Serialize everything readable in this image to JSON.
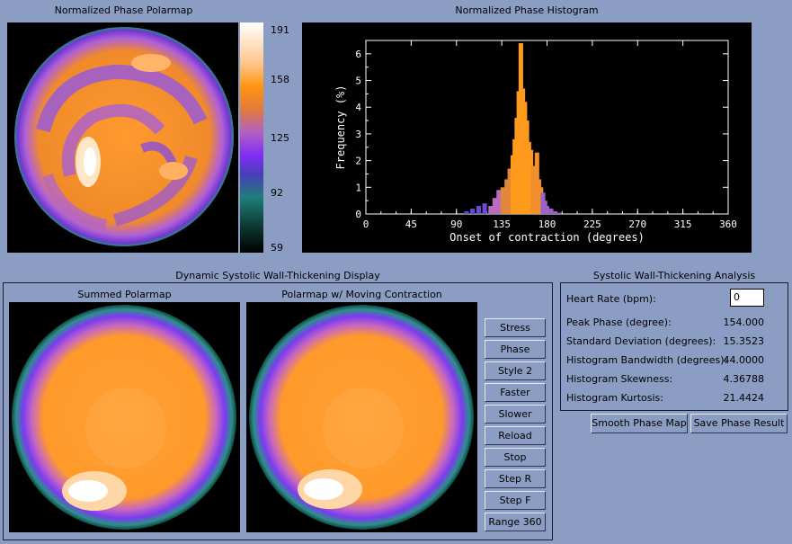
{
  "polarmap": {
    "title": "Normalized Phase Polarmap",
    "colorbar_ticks": [
      "191",
      "158",
      "125",
      "92",
      "59"
    ]
  },
  "histogram": {
    "title": "Normalized Phase Histogram",
    "xlabel": "Onset of contraction (degrees)",
    "ylabel": "Frequency (%)",
    "x_ticks": [
      "0",
      "45",
      "90",
      "135",
      "180",
      "225",
      "270",
      "315",
      "360"
    ],
    "y_ticks": [
      "0",
      "1",
      "2",
      "3",
      "4",
      "5",
      "6"
    ]
  },
  "dynamic": {
    "group_title": "Dynamic Systolic Wall-Thickening Display",
    "summed_title": "Summed Polarmap",
    "moving_title": "Polarmap w/ Moving Contraction",
    "buttons": [
      "Stress",
      "Phase",
      "Style 2",
      "Faster",
      "Slower",
      "Reload",
      "Stop",
      "Step R",
      "Step F",
      "Range 360"
    ]
  },
  "analysis": {
    "group_title": "Systolic Wall-Thickening Analysis",
    "heart_rate_label": "Heart Rate (bpm):",
    "heart_rate_value": "0",
    "rows": [
      {
        "label": "Peak Phase (degree):",
        "value": "154.000"
      },
      {
        "label": "Standard Deviation (degrees):",
        "value": "15.3523"
      },
      {
        "label": "Histogram Bandwidth (degrees):",
        "value": "44.0000"
      },
      {
        "label": "Histogram Skewness:",
        "value": "4.36788"
      },
      {
        "label": "Histogram Kurtosis:",
        "value": "21.4424"
      }
    ],
    "smooth_button": "Smooth Phase Map",
    "save_button": "Save Phase Result"
  },
  "chart_data": {
    "type": "bar",
    "title": "Normalized Phase Histogram",
    "xlabel": "Onset of contraction (degrees)",
    "ylabel": "Frequency (%)",
    "xlim": [
      0,
      360
    ],
    "ylim": [
      0,
      6.5
    ],
    "x": [
      100,
      106,
      112,
      118,
      124,
      128,
      132,
      136,
      140,
      143,
      146,
      148,
      150,
      152,
      154,
      156,
      158,
      160,
      162,
      164,
      166,
      168,
      170,
      172,
      174,
      176,
      178,
      180,
      184,
      188,
      192
    ],
    "values": [
      0.1,
      0.2,
      0.3,
      0.4,
      0.3,
      0.6,
      0.9,
      1.0,
      1.3,
      1.7,
      2.2,
      2.8,
      3.6,
      4.6,
      6.4,
      4.7,
      4.2,
      3.5,
      2.7,
      2.4,
      1.8,
      1.6,
      2.3,
      1.3,
      1.0,
      0.8,
      0.5,
      0.3,
      0.2,
      0.1,
      0.05
    ],
    "grid": false
  },
  "colors": {
    "background": "#8b9dc3",
    "colormap": [
      "#0b1410",
      "#2a8f83",
      "#5b2fd7",
      "#ff8c00",
      "#ffffff"
    ]
  }
}
